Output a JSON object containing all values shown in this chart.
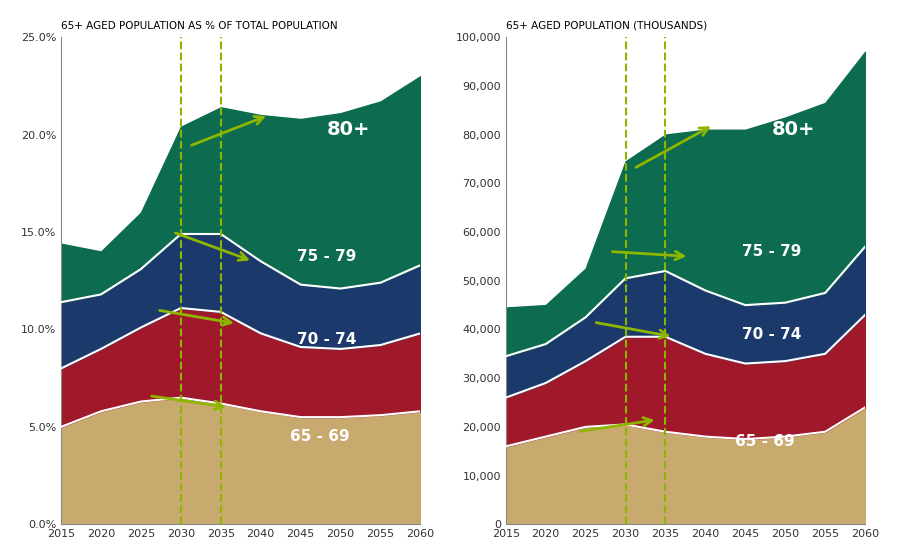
{
  "years": [
    2015,
    2020,
    2025,
    2030,
    2035,
    2040,
    2045,
    2050,
    2055,
    2060
  ],
  "left_title": "65+ AGED POPULATION AS % OF TOTAL POPULATION",
  "right_title": "65+ AGED POPULATION (THOUSANDS)",
  "colors": {
    "65_69": "#C8A96E",
    "70_74": "#A0192A",
    "75_79": "#1B3A6B",
    "80plus": "#0D6B4F"
  },
  "left_data": {
    "65_69": [
      0.05,
      0.058,
      0.063,
      0.065,
      0.062,
      0.058,
      0.055,
      0.055,
      0.056,
      0.058
    ],
    "70_74": [
      0.03,
      0.032,
      0.038,
      0.046,
      0.047,
      0.04,
      0.036,
      0.035,
      0.036,
      0.04
    ],
    "75_79": [
      0.034,
      0.028,
      0.03,
      0.038,
      0.04,
      0.037,
      0.032,
      0.031,
      0.032,
      0.035
    ],
    "80plus": [
      0.03,
      0.022,
      0.029,
      0.055,
      0.065,
      0.075,
      0.085,
      0.09,
      0.093,
      0.097
    ]
  },
  "right_data": {
    "65_69": [
      16000,
      18000,
      20000,
      20500,
      19000,
      18000,
      17500,
      18000,
      19000,
      24000
    ],
    "70_74": [
      10000,
      11000,
      13500,
      18000,
      19500,
      17000,
      15500,
      15500,
      16000,
      19000
    ],
    "75_79": [
      8500,
      8000,
      9000,
      12000,
      13500,
      13000,
      12000,
      12000,
      12500,
      14000
    ],
    "80plus": [
      10000,
      8000,
      10000,
      24000,
      28000,
      33000,
      36000,
      38000,
      39000,
      40000
    ]
  },
  "left_ylim": [
    0.0,
    0.25
  ],
  "right_ylim": [
    0,
    100000
  ],
  "left_yticks": [
    0.0,
    0.05,
    0.1,
    0.15,
    0.2,
    0.25
  ],
  "right_yticks": [
    0,
    10000,
    20000,
    30000,
    40000,
    50000,
    60000,
    70000,
    80000,
    90000,
    100000
  ],
  "xticks": [
    2015,
    2020,
    2025,
    2030,
    2035,
    2040,
    2045,
    2050,
    2055,
    2060
  ],
  "dashed_lines": [
    2030,
    2035
  ],
  "arrow_color": "#8DB600"
}
